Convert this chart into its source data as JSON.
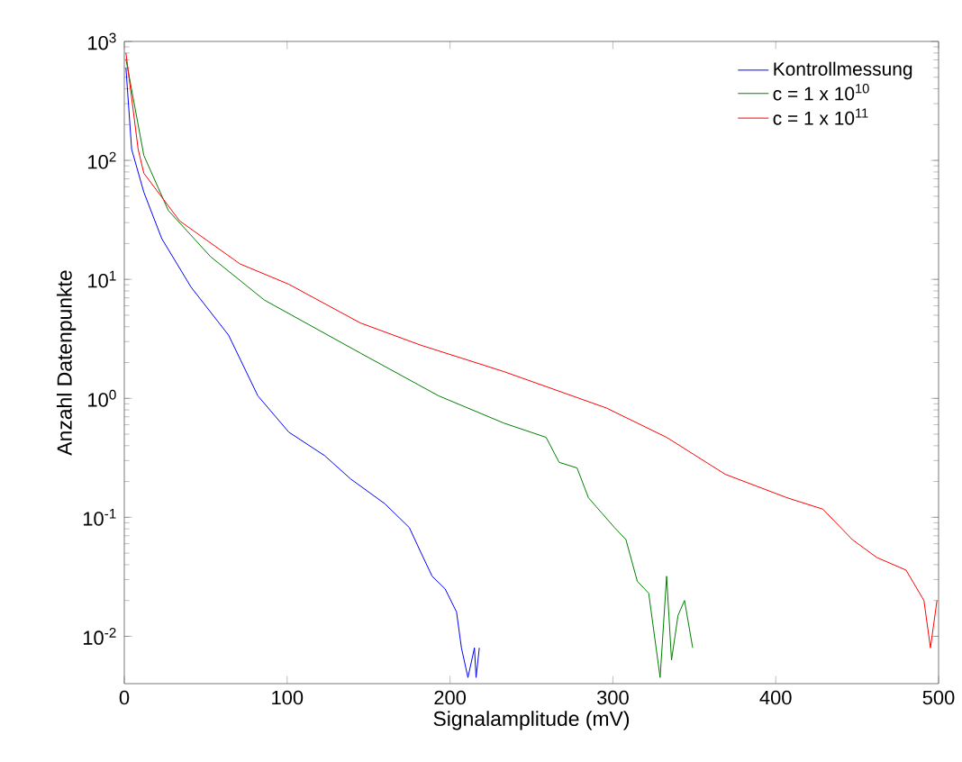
{
  "chart_data": {
    "type": "line",
    "xlabel": "Signalamplitude (mV)",
    "ylabel": "Anzahl Datenpunkte",
    "log": "y",
    "xlim": [
      0,
      500
    ],
    "ylim": [
      0.004,
      1000
    ],
    "xticks": [
      0,
      100,
      200,
      300,
      400,
      500
    ],
    "yticks": [
      {
        "value": 0.01,
        "label": "10$^{-2}$"
      },
      {
        "value": 0.1,
        "label": "10$^{-1}$"
      },
      {
        "value": 1,
        "label": "10$^{0}$"
      },
      {
        "value": 10,
        "label": "10$^{1}$"
      },
      {
        "value": 100,
        "label": "10$^{2}$"
      },
      {
        "value": 1000,
        "label": "10$^{3}$"
      }
    ],
    "legend": "top right",
    "grid": false,
    "line_style": "solid",
    "marker": "none",
    "series": [
      {
        "name": "Kontrollmessung",
        "color": "#0000ff",
        "x": [
          1,
          4.5,
          12,
          23,
          41,
          64,
          82,
          101,
          123,
          139,
          160,
          175,
          182,
          189,
          197,
          204,
          207,
          211,
          215,
          216,
          218
        ],
        "values": [
          600,
          124,
          54,
          22,
          8.6,
          3.4,
          1.05,
          0.52,
          0.33,
          0.21,
          0.13,
          0.082,
          0.051,
          0.032,
          0.025,
          0.016,
          0.008,
          0.0045,
          0.008,
          0.0045,
          0.008
        ]
      },
      {
        "name": "c = 1 x 10$^{10}$",
        "color": "#008000",
        "x": [
          1,
          12,
          27,
          53,
          86,
          145,
          193,
          233,
          259,
          267,
          278,
          285,
          301,
          308,
          315,
          322,
          329,
          333,
          336,
          340,
          344,
          349
        ],
        "values": [
          710,
          110,
          38,
          15.5,
          6.7,
          2.4,
          1.05,
          0.62,
          0.47,
          0.29,
          0.26,
          0.146,
          0.082,
          0.065,
          0.029,
          0.023,
          0.0045,
          0.032,
          0.0063,
          0.015,
          0.02,
          0.008
        ]
      },
      {
        "name": "c = 1 x 10$^{11}$",
        "color": "#ff0000",
        "x": [
          1,
          8.5,
          12,
          34,
          71,
          101,
          145,
          182,
          233,
          296,
          333,
          369,
          407,
          429,
          447,
          462,
          480,
          491,
          495,
          499
        ],
        "values": [
          800,
          124,
          78,
          31,
          13.5,
          9.1,
          4.3,
          2.8,
          1.68,
          0.83,
          0.47,
          0.23,
          0.146,
          0.117,
          0.065,
          0.046,
          0.036,
          0.02,
          0.008,
          0.02
        ]
      }
    ]
  }
}
